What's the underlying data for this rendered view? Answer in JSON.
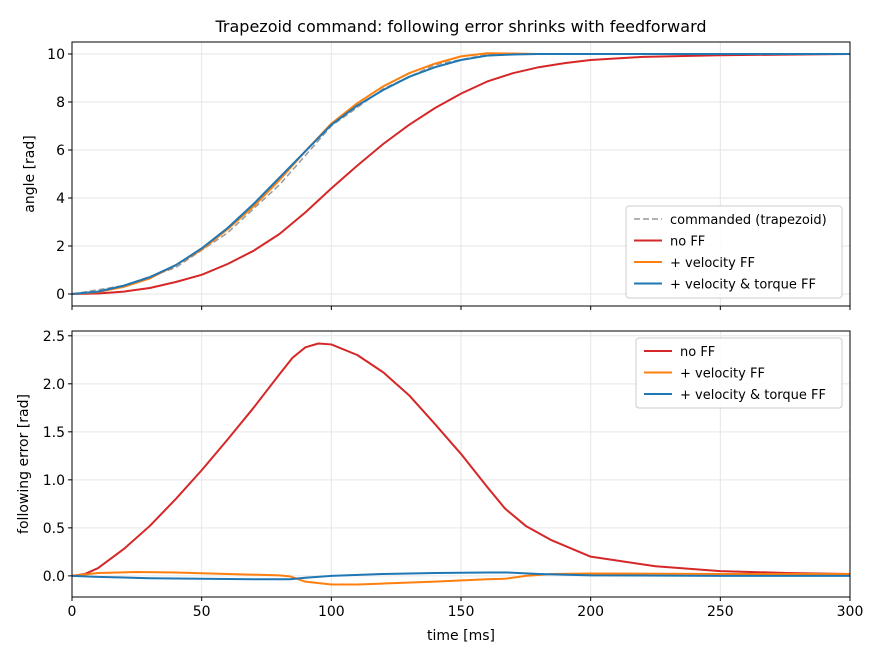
{
  "title": "Trapezoid command: following error shrinks with feedforward",
  "colors": {
    "commanded": "#999999",
    "no_ff": "#d62728",
    "vel_ff": "#ff7f0e",
    "vel_torque_ff": "#1f77b4",
    "grid": "#e6e6e6"
  },
  "chart_data": [
    {
      "type": "line",
      "ylabel": "angle [rad]",
      "xlim": [
        0,
        300
      ],
      "ylim": [
        -0.5,
        10.5
      ],
      "yticks": [
        0,
        2,
        4,
        6,
        8,
        10
      ],
      "xticks": [
        0,
        50,
        100,
        150,
        200,
        250,
        300
      ],
      "grid": true,
      "legend_position": "lower-right",
      "series": [
        {
          "name": "commanded (trapezoid)",
          "color": "#999999",
          "style": "dashed",
          "x": [
            0,
            20,
            40,
            60,
            80,
            100,
            120,
            140,
            160,
            170,
            180,
            200,
            250,
            300
          ],
          "y": [
            0,
            0.35,
            1.1,
            2.55,
            4.55,
            7.0,
            8.55,
            9.55,
            9.98,
            10.0,
            10.0,
            10.0,
            10.0,
            10.0
          ]
        },
        {
          "name": "no FF",
          "color": "#d62728",
          "style": "solid",
          "x": [
            0,
            10,
            20,
            30,
            40,
            50,
            60,
            70,
            80,
            90,
            100,
            110,
            120,
            130,
            140,
            150,
            160,
            170,
            180,
            190,
            200,
            220,
            250,
            300
          ],
          "y": [
            0,
            0.02,
            0.1,
            0.25,
            0.5,
            0.8,
            1.25,
            1.8,
            2.5,
            3.4,
            4.4,
            5.35,
            6.25,
            7.05,
            7.75,
            8.35,
            8.85,
            9.2,
            9.45,
            9.62,
            9.75,
            9.88,
            9.95,
            10.0
          ]
        },
        {
          "name": "+ velocity FF",
          "color": "#ff7f0e",
          "style": "solid",
          "x": [
            0,
            10,
            20,
            30,
            40,
            50,
            60,
            70,
            80,
            90,
            100,
            110,
            120,
            130,
            140,
            150,
            160,
            170,
            180,
            200,
            250,
            300
          ],
          "y": [
            0,
            0.08,
            0.3,
            0.65,
            1.2,
            1.85,
            2.7,
            3.65,
            4.75,
            5.95,
            7.1,
            7.95,
            8.65,
            9.2,
            9.6,
            9.9,
            10.03,
            10.02,
            10.0,
            10.0,
            10.0,
            10.0
          ]
        },
        {
          "name": "+ velocity & torque FF",
          "color": "#1f77b4",
          "style": "solid",
          "x": [
            0,
            10,
            20,
            30,
            40,
            50,
            60,
            70,
            80,
            90,
            100,
            110,
            120,
            130,
            140,
            150,
            160,
            170,
            180,
            200,
            250,
            300
          ],
          "y": [
            0,
            0.1,
            0.35,
            0.7,
            1.2,
            1.9,
            2.75,
            3.75,
            4.85,
            5.95,
            7.05,
            7.85,
            8.5,
            9.05,
            9.45,
            9.75,
            9.93,
            9.98,
            10.0,
            10.0,
            10.0,
            10.0
          ]
        }
      ]
    },
    {
      "type": "line",
      "xlabel": "time [ms]",
      "ylabel": "following error [rad]",
      "xlim": [
        0,
        300
      ],
      "ylim": [
        -0.22,
        2.55
      ],
      "yticks": [
        0.0,
        0.5,
        1.0,
        1.5,
        2.0,
        2.5
      ],
      "ytick_labels": [
        "0.0",
        "0.5",
        "1.0",
        "1.5",
        "2.0",
        "2.5"
      ],
      "xticks": [
        0,
        50,
        100,
        150,
        200,
        250,
        300
      ],
      "grid": true,
      "legend_position": "upper-right",
      "series": [
        {
          "name": "no FF",
          "color": "#d62728",
          "x": [
            0,
            5,
            10,
            20,
            30,
            40,
            50,
            60,
            70,
            80,
            85,
            90,
            95,
            100,
            110,
            120,
            130,
            140,
            150,
            160,
            167,
            175,
            185,
            200,
            225,
            250,
            275,
            300
          ],
          "y": [
            0,
            0.02,
            0.08,
            0.28,
            0.52,
            0.8,
            1.1,
            1.42,
            1.75,
            2.1,
            2.27,
            2.38,
            2.42,
            2.41,
            2.3,
            2.12,
            1.88,
            1.58,
            1.27,
            0.93,
            0.7,
            0.52,
            0.37,
            0.2,
            0.1,
            0.05,
            0.03,
            0.02
          ]
        },
        {
          "name": "+ velocity FF",
          "color": "#ff7f0e",
          "x": [
            0,
            10,
            25,
            40,
            60,
            80,
            84,
            90,
            100,
            110,
            120,
            140,
            160,
            167,
            175,
            185,
            200,
            250,
            300
          ],
          "y": [
            0,
            0.03,
            0.04,
            0.035,
            0.02,
            0.005,
            -0.005,
            -0.06,
            -0.09,
            -0.09,
            -0.08,
            -0.06,
            -0.035,
            -0.03,
            0.0,
            0.02,
            0.025,
            0.02,
            0.02
          ]
        },
        {
          "name": "+ velocity & torque FF",
          "color": "#1f77b4",
          "x": [
            0,
            10,
            30,
            50,
            70,
            84,
            90,
            100,
            120,
            140,
            160,
            168,
            180,
            200,
            250,
            300
          ],
          "y": [
            0,
            -0.01,
            -0.025,
            -0.03,
            -0.035,
            -0.035,
            -0.02,
            0.0,
            0.02,
            0.03,
            0.035,
            0.035,
            0.02,
            0.005,
            0.0,
            0.0
          ]
        }
      ]
    }
  ]
}
